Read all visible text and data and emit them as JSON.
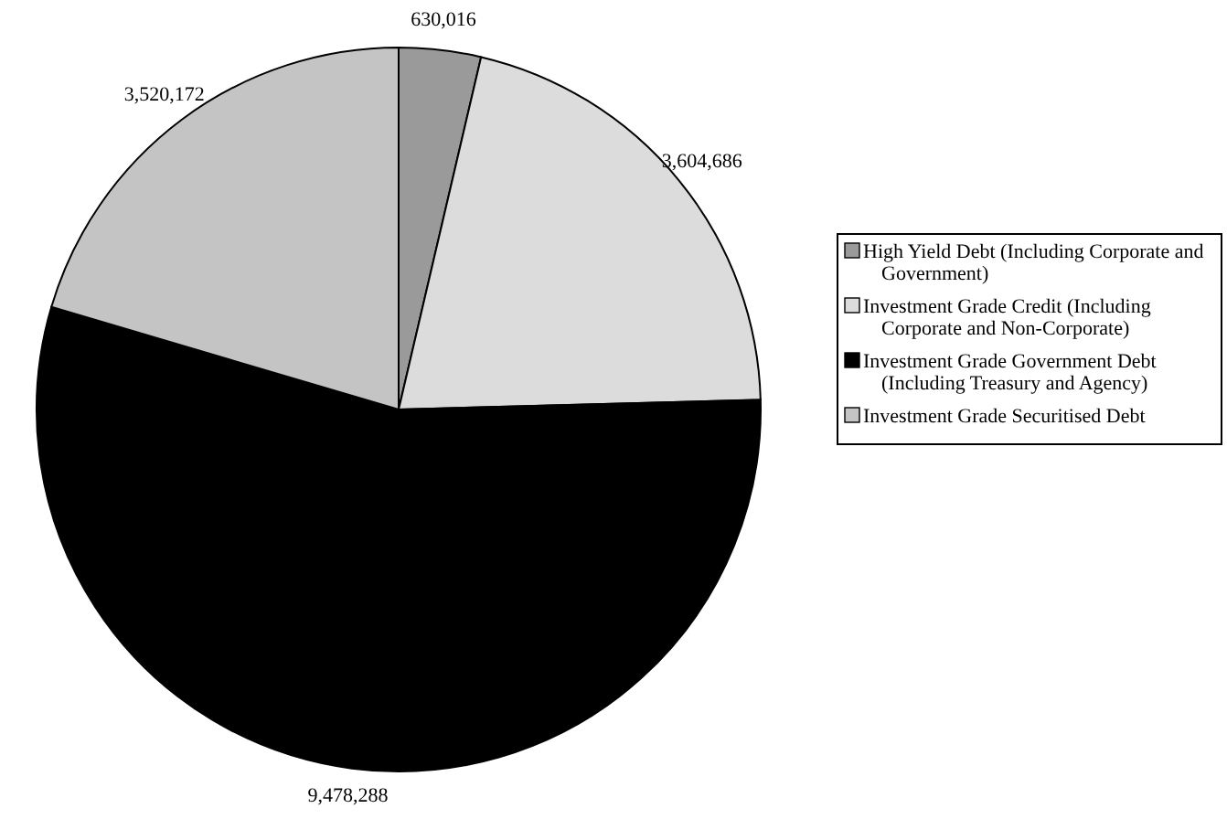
{
  "chart_data": {
    "type": "pie",
    "categories": [
      "High Yield Debt (Including Corporate and Government)",
      "Investment Grade Credit (Including Corporate and Non-Corporate)",
      "Investment Grade Government Debt (Including Treasury and Agency)",
      "Investment Grade Securitised Debt"
    ],
    "values": [
      630016,
      3604686,
      9478288,
      3520172
    ],
    "colors": [
      "#9a9a9a",
      "#dcdcdc",
      "#000000",
      "#c4c4c4"
    ],
    "value_labels": [
      "630,016",
      "3,604,686",
      "9,478,288",
      "3,520,172"
    ],
    "legend": "right"
  }
}
